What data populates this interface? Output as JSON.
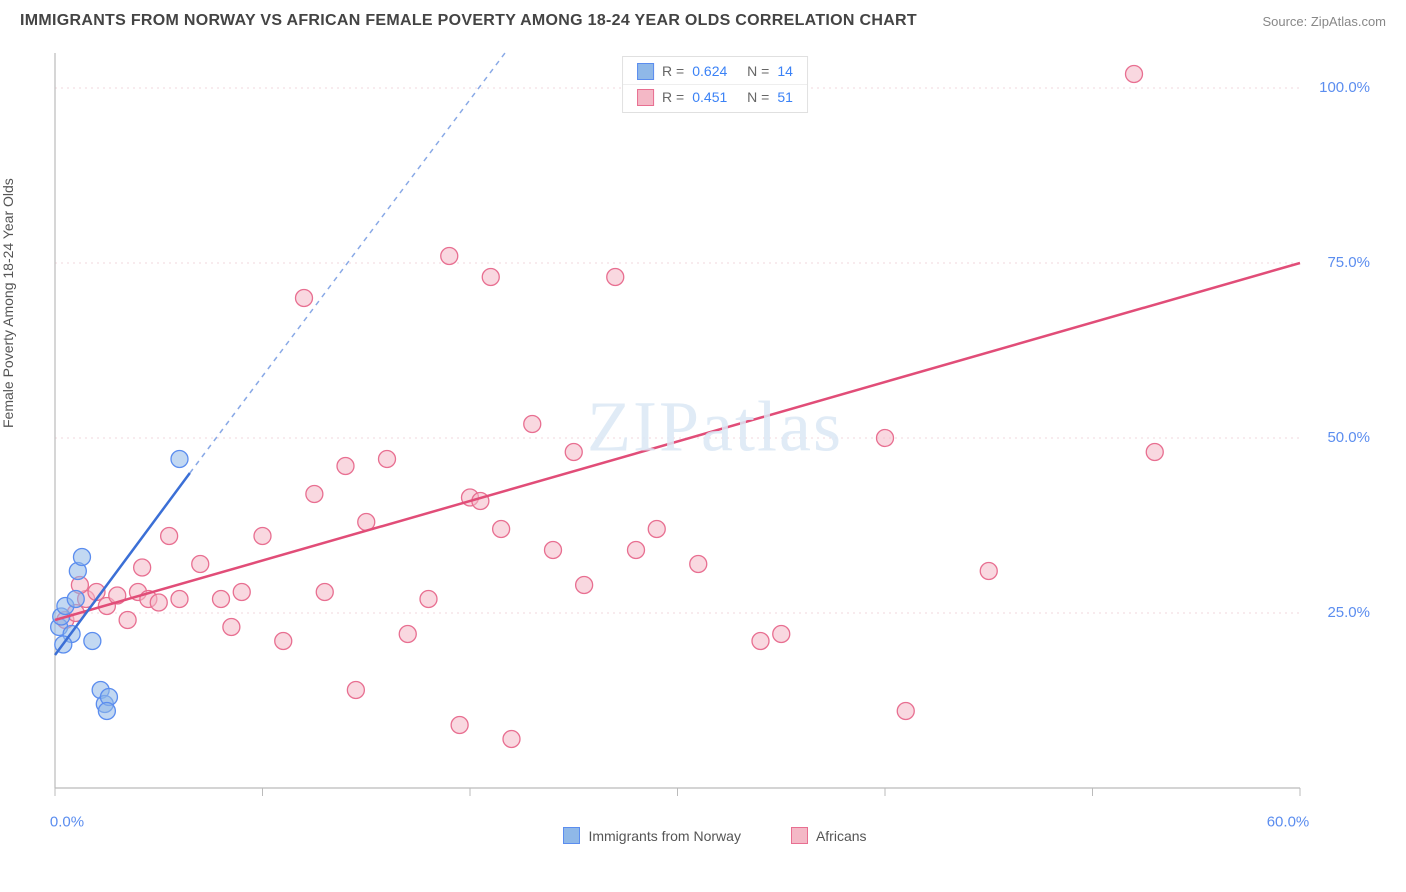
{
  "header": {
    "title": "IMMIGRANTS FROM NORWAY VS AFRICAN FEMALE POVERTY AMONG 18-24 YEAR OLDS CORRELATION CHART",
    "source": "Source: ZipAtlas.com"
  },
  "watermark": {
    "zip": "ZIP",
    "atlas": "atlas"
  },
  "y_axis_label": "Female Poverty Among 18-24 Year Olds",
  "chart": {
    "type": "scatter-with-regression",
    "background_color": "#ffffff",
    "grid_color": "#f2d7de",
    "axis_color": "#bbbbbb",
    "tick_color": "#bbbbbb",
    "xlim": [
      0,
      60
    ],
    "ylim": [
      0,
      105
    ],
    "x_ticks": [
      0,
      10,
      20,
      30,
      40,
      50,
      60
    ],
    "x_tick_labels": [
      "0.0%",
      "",
      "",
      "",
      "",
      "",
      "60.0%"
    ],
    "y_ticks": [
      25,
      50,
      75,
      100
    ],
    "y_tick_labels": [
      "25.0%",
      "50.0%",
      "75.0%",
      "100.0%"
    ],
    "x_tick_label_color": "#5b8def",
    "y_tick_label_color": "#5b8def",
    "marker_radius": 8.5,
    "marker_opacity": 0.55,
    "series": {
      "norway": {
        "label": "Immigrants from Norway",
        "color": "#8fb8e8",
        "stroke": "#5b8def",
        "line_color": "#3b6fd6",
        "line_dash_ext": "5,5",
        "R": "0.624",
        "N": "14",
        "points": [
          [
            0.2,
            23
          ],
          [
            0.3,
            24.5
          ],
          [
            0.5,
            26
          ],
          [
            0.8,
            22
          ],
          [
            1.0,
            27
          ],
          [
            1.1,
            31
          ],
          [
            1.3,
            33
          ],
          [
            0.4,
            20.5
          ],
          [
            2.2,
            14
          ],
          [
            2.4,
            12
          ],
          [
            2.6,
            13
          ],
          [
            2.5,
            11
          ],
          [
            1.8,
            21
          ],
          [
            6.0,
            47
          ]
        ],
        "regression": {
          "x1": 0,
          "y1": 19,
          "x2_solid": 6.5,
          "y2_solid": 45,
          "x2_ext": 27,
          "y2_ext": 126
        }
      },
      "africans": {
        "label": "Africans",
        "color": "#f4b8c6",
        "stroke": "#e86f91",
        "line_color": "#e14d78",
        "R": "0.451",
        "N": "51",
        "points": [
          [
            0.5,
            24
          ],
          [
            1.0,
            25
          ],
          [
            1.5,
            27
          ],
          [
            2.0,
            28
          ],
          [
            2.5,
            26
          ],
          [
            3.0,
            27.5
          ],
          [
            3.5,
            24
          ],
          [
            4.0,
            28
          ],
          [
            4.5,
            27
          ],
          [
            5.0,
            26.5
          ],
          [
            5.5,
            36
          ],
          [
            6.0,
            27
          ],
          [
            7.0,
            32
          ],
          [
            8.0,
            27
          ],
          [
            8.5,
            23
          ],
          [
            9.0,
            28
          ],
          [
            10.0,
            36
          ],
          [
            11.0,
            21
          ],
          [
            12.0,
            70
          ],
          [
            12.5,
            42
          ],
          [
            13.0,
            28
          ],
          [
            14.0,
            46
          ],
          [
            14.5,
            14
          ],
          [
            15.0,
            38
          ],
          [
            16.0,
            47
          ],
          [
            17.0,
            22
          ],
          [
            18.0,
            27
          ],
          [
            19.0,
            76
          ],
          [
            19.5,
            9
          ],
          [
            20.0,
            41.5
          ],
          [
            20.5,
            41
          ],
          [
            21.0,
            73
          ],
          [
            21.5,
            37
          ],
          [
            22.0,
            7
          ],
          [
            23.0,
            52
          ],
          [
            24.0,
            34
          ],
          [
            25.0,
            48
          ],
          [
            25.5,
            29
          ],
          [
            27.0,
            73
          ],
          [
            28.0,
            34
          ],
          [
            29.0,
            37
          ],
          [
            31.0,
            32
          ],
          [
            34.0,
            21
          ],
          [
            35.0,
            22
          ],
          [
            40.0,
            50
          ],
          [
            41.0,
            11
          ],
          [
            45.0,
            31
          ],
          [
            52.0,
            102
          ],
          [
            53.0,
            48
          ],
          [
            1.2,
            29
          ],
          [
            4.2,
            31.5
          ]
        ],
        "regression": {
          "x1": 0,
          "y1": 24,
          "x2": 60,
          "y2": 75
        }
      }
    }
  },
  "legend_top": {
    "R_label": "R =",
    "N_label": "N ="
  },
  "legend_bottom": {
    "items": [
      "norway",
      "africans"
    ]
  }
}
